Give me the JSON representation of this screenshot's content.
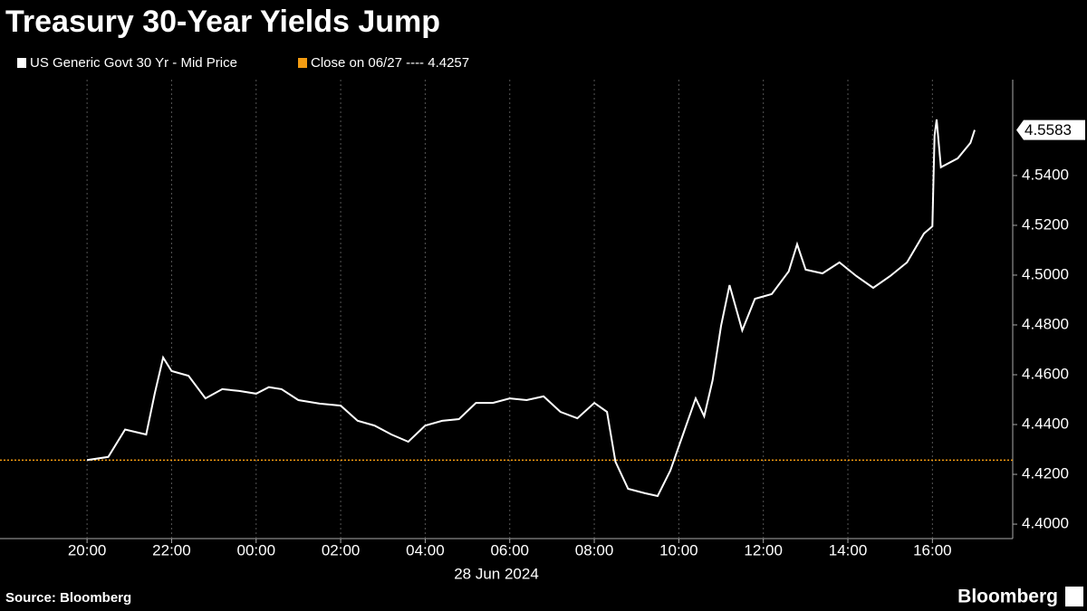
{
  "chart_data": {
    "type": "line",
    "title": "Treasury 30-Year Yields Jump",
    "x_label": "28 Jun 2024",
    "source": "Source: Bloomberg",
    "brand": "Bloomberg",
    "x": [
      20.0,
      20.5,
      20.9,
      21.4,
      21.6,
      21.8,
      22.0,
      22.4,
      22.8,
      23.2,
      23.6,
      24.0,
      24.3,
      24.6,
      25.0,
      25.5,
      26.0,
      26.4,
      26.8,
      27.2,
      27.6,
      28.0,
      28.4,
      28.8,
      29.2,
      29.6,
      30.0,
      30.4,
      30.8,
      31.2,
      31.6,
      32.0,
      32.3,
      32.5,
      32.8,
      33.2,
      33.5,
      33.8,
      34.1,
      34.4,
      34.6,
      34.8,
      35.0,
      35.2,
      35.5,
      35.8,
      36.2,
      36.6,
      36.8,
      37.0,
      37.4,
      37.8,
      38.2,
      38.6,
      39.0,
      39.4,
      39.8,
      40.0,
      40.05,
      40.1,
      40.2,
      40.6,
      40.9,
      41.0
    ],
    "series": [
      {
        "name": "US Generic Govt 30 Yr - Mid Price",
        "color": "#ffffff",
        "values": [
          4.4257,
          4.427,
          4.438,
          4.436,
          4.4524,
          4.4669,
          4.4615,
          4.4596,
          4.4505,
          4.4542,
          4.4535,
          4.4524,
          4.455,
          4.4542,
          4.4498,
          4.4484,
          4.4476,
          4.4415,
          4.4396,
          4.436,
          4.4331,
          4.4396,
          4.4415,
          4.4422,
          4.4487,
          4.4487,
          4.4505,
          4.4498,
          4.4513,
          4.4451,
          4.4425,
          4.4487,
          4.4451,
          4.4251,
          4.4142,
          4.4124,
          4.4113,
          4.4215,
          4.436,
          4.4505,
          4.4433,
          4.4578,
          4.4796,
          4.496,
          4.4778,
          4.4905,
          4.4924,
          4.5015,
          4.5124,
          4.5022,
          4.5007,
          4.5051,
          4.4996,
          4.4949,
          4.4996,
          4.5051,
          4.5167,
          4.5196,
          4.556,
          4.5625,
          4.5433,
          4.5469,
          4.5531,
          4.5583
        ]
      }
    ],
    "reference_line": {
      "name": "Close on 06/27 ---- 4.4257",
      "value": 4.4257,
      "color": "#f39c12"
    },
    "last_value_label": "4.5583",
    "xlim": [
      17.94,
      41.9
    ],
    "xticks": [
      {
        "value": 20,
        "label": "20:00"
      },
      {
        "value": 22,
        "label": "22:00"
      },
      {
        "value": 24,
        "label": "00:00"
      },
      {
        "value": 26,
        "label": "02:00"
      },
      {
        "value": 28,
        "label": "04:00"
      },
      {
        "value": 30,
        "label": "06:00"
      },
      {
        "value": 32,
        "label": "08:00"
      },
      {
        "value": 34,
        "label": "10:00"
      },
      {
        "value": 36,
        "label": "12:00"
      },
      {
        "value": 38,
        "label": "14:00"
      },
      {
        "value": 40,
        "label": "16:00"
      }
    ],
    "ylim": [
      4.3942,
      4.5785
    ],
    "yticks": [
      {
        "value": 4.4,
        "label": "4.4000"
      },
      {
        "value": 4.42,
        "label": "4.4200"
      },
      {
        "value": 4.44,
        "label": "4.4400"
      },
      {
        "value": 4.46,
        "label": "4.4600"
      },
      {
        "value": 4.48,
        "label": "4.4800"
      },
      {
        "value": 4.5,
        "label": "4.5000"
      },
      {
        "value": 4.52,
        "label": "4.5200"
      },
      {
        "value": 4.54,
        "label": "4.5400"
      }
    ],
    "grid": true
  }
}
